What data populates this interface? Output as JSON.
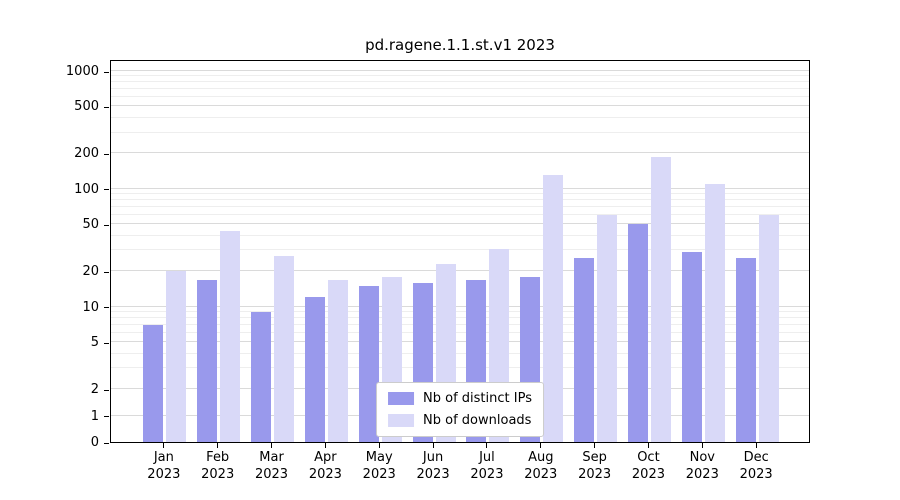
{
  "chart_data": {
    "type": "bar",
    "title": "pd.ragene.1.1.st.v1 2023",
    "categories": [
      "Jan",
      "Feb",
      "Mar",
      "Apr",
      "May",
      "Jun",
      "Jul",
      "Aug",
      "Sep",
      "Oct",
      "Nov",
      "Dec"
    ],
    "category_year": "2023",
    "series": [
      {
        "name": "Nb of distinct IPs",
        "color": "#9999ec",
        "values": [
          7,
          17,
          9,
          12,
          15,
          16,
          17,
          18,
          26,
          50,
          29,
          26
        ]
      },
      {
        "name": "Nb of downloads",
        "color": "#d9d9f8",
        "values": [
          20,
          44,
          27,
          17,
          18,
          23,
          31,
          130,
          60,
          185,
          110,
          60
        ]
      }
    ],
    "yscale": "symlog",
    "yticks": [
      0,
      1,
      2,
      5,
      10,
      20,
      50,
      100,
      200,
      500,
      1000
    ],
    "minor_yticks": [
      3,
      4,
      6,
      7,
      8,
      9,
      30,
      40,
      60,
      70,
      80,
      90,
      300,
      400,
      600,
      700,
      800,
      900
    ],
    "ylim": [
      0,
      1100
    ],
    "grid": true,
    "legend_position": "lower center",
    "colors": {
      "axis": "#000000",
      "grid_major": "#dadada",
      "grid_minor": "#eeeeee",
      "background": "#ffffff"
    }
  }
}
